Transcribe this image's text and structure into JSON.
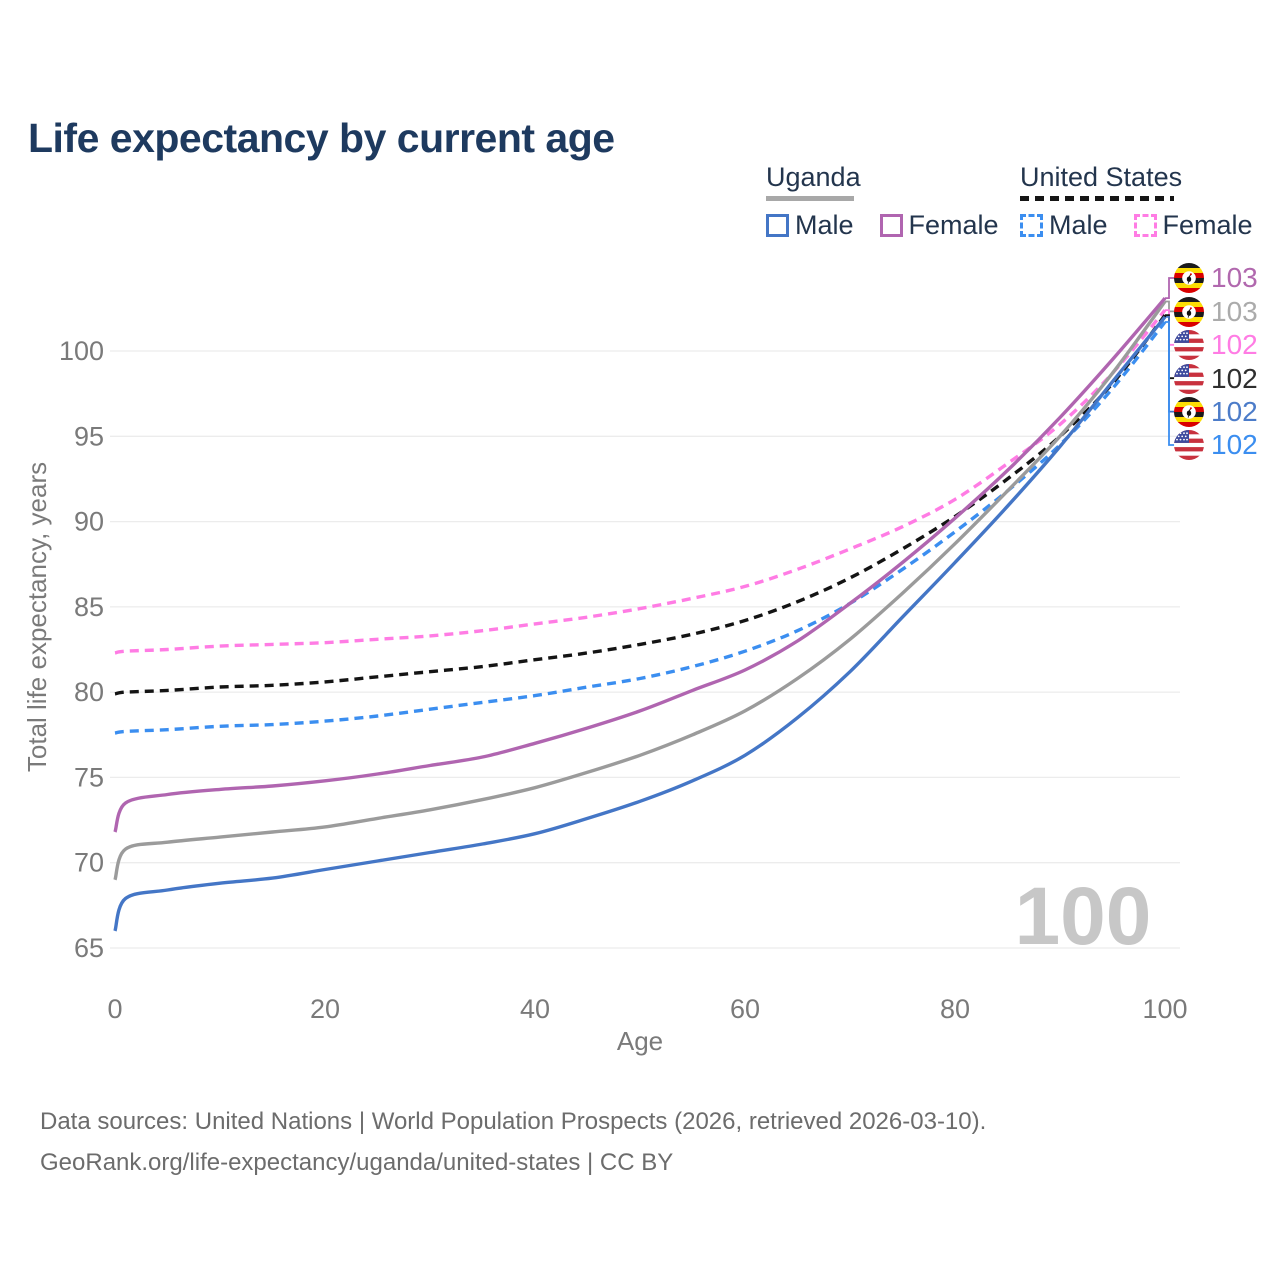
{
  "title": "Life expectancy by current age",
  "legend": {
    "uganda": {
      "title": "Uganda",
      "male": "Male",
      "female": "Female"
    },
    "united_states": {
      "title": "United States",
      "male": "Male",
      "female": "Female"
    }
  },
  "watermark_age": "100",
  "footer": {
    "line1": "Data sources: United Nations | World Population Prospects (2026, retrieved 2026-03-10).",
    "line2": "GeoRank.org/life-expectancy/uganda/united-states | CC BY"
  },
  "end_labels": [
    {
      "series": 1,
      "value": "103",
      "flag": "uganda",
      "color": "#B168AE"
    },
    {
      "series": 2,
      "value": "103",
      "flag": "uganda",
      "color": "#ABABAB"
    },
    {
      "series": 4,
      "value": "102",
      "flag": "united-states",
      "color": "#FF7CE4"
    },
    {
      "series": 5,
      "value": "102",
      "flag": "united-states",
      "color": "#2F2F2F"
    },
    {
      "series": 0,
      "value": "102",
      "flag": "uganda",
      "color": "#4C7CC9"
    },
    {
      "series": 3,
      "value": "102",
      "flag": "united-states",
      "color": "#3B8EF0"
    }
  ],
  "colors": {
    "uganda_male": "#4476C6",
    "uganda_female": "#B065B0",
    "uganda_total": "#9B9B9B",
    "us_male": "#3B8EF0",
    "us_female": "#FF7CE4",
    "us_total": "#141414",
    "grid": "#ECECEC",
    "tick_text": "#7A7A7A",
    "title_text": "#1E3A5F",
    "watermark": "#C7C7C7"
  },
  "chart_data": {
    "type": "line",
    "title": "Life expectancy by current age",
    "xlabel": "Age",
    "ylabel": "Total life expectancy, years",
    "xlim": [
      0,
      100
    ],
    "ylim": [
      65,
      103.5
    ],
    "xticks": [
      0,
      20,
      40,
      60,
      80,
      100
    ],
    "yticks": [
      65,
      70,
      75,
      80,
      85,
      90,
      95,
      100
    ],
    "grid": "horizontal",
    "legend_position": "top-right",
    "x": [
      0,
      1,
      5,
      10,
      15,
      20,
      25,
      30,
      35,
      40,
      45,
      50,
      55,
      60,
      65,
      70,
      75,
      80,
      85,
      90,
      95,
      100
    ],
    "series": [
      {
        "name": "Uganda Male",
        "country": "Uganda",
        "sex": "Male",
        "style": "solid",
        "color": "#4476C6",
        "end_label": 102,
        "values": [
          66.0,
          67.9,
          68.4,
          68.8,
          69.1,
          69.6,
          70.1,
          70.6,
          71.1,
          71.7,
          72.6,
          73.6,
          74.8,
          76.3,
          78.5,
          81.2,
          84.4,
          87.6,
          90.9,
          94.4,
          98.2,
          102.0
        ]
      },
      {
        "name": "Uganda Female",
        "country": "Uganda",
        "sex": "Female",
        "style": "solid",
        "color": "#B065B0",
        "end_label": 103,
        "values": [
          71.8,
          73.5,
          74.0,
          74.3,
          74.5,
          74.8,
          75.2,
          75.7,
          76.2,
          77.0,
          77.9,
          78.9,
          80.1,
          81.3,
          83.0,
          85.2,
          87.6,
          90.2,
          93.0,
          96.1,
          99.5,
          103.1
        ]
      },
      {
        "name": "Uganda (both sexes)",
        "country": "Uganda",
        "sex": "Both",
        "style": "solid",
        "color": "#9B9B9B",
        "end_label": 103,
        "values": [
          69.0,
          70.8,
          71.2,
          71.5,
          71.8,
          72.1,
          72.6,
          73.1,
          73.7,
          74.4,
          75.3,
          76.3,
          77.5,
          78.9,
          80.8,
          83.1,
          85.8,
          88.7,
          91.8,
          95.0,
          98.7,
          102.9
        ]
      },
      {
        "name": "United States Male",
        "country": "United States",
        "sex": "Male",
        "style": "dashed",
        "color": "#3B8EF0",
        "end_label": 102,
        "values": [
          77.6,
          77.7,
          77.8,
          78.0,
          78.1,
          78.3,
          78.6,
          79.0,
          79.4,
          79.8,
          80.3,
          80.8,
          81.5,
          82.4,
          83.6,
          85.2,
          87.2,
          89.4,
          91.8,
          94.5,
          97.8,
          101.7
        ]
      },
      {
        "name": "United States Female",
        "country": "United States",
        "sex": "Female",
        "style": "dashed",
        "color": "#FF7CE4",
        "end_label": 102,
        "values": [
          82.3,
          82.4,
          82.5,
          82.7,
          82.8,
          82.9,
          83.1,
          83.3,
          83.6,
          84.0,
          84.4,
          84.9,
          85.5,
          86.2,
          87.2,
          88.4,
          89.7,
          91.3,
          93.4,
          95.7,
          98.7,
          102.4
        ]
      },
      {
        "name": "United States (both sexes)",
        "country": "United States",
        "sex": "Both",
        "style": "dashed",
        "color": "#141414",
        "end_label": 102,
        "values": [
          79.9,
          80.0,
          80.1,
          80.3,
          80.4,
          80.6,
          80.9,
          81.2,
          81.5,
          81.9,
          82.3,
          82.8,
          83.4,
          84.2,
          85.3,
          86.7,
          88.4,
          90.3,
          92.5,
          95.0,
          98.1,
          102.1
        ]
      }
    ]
  }
}
